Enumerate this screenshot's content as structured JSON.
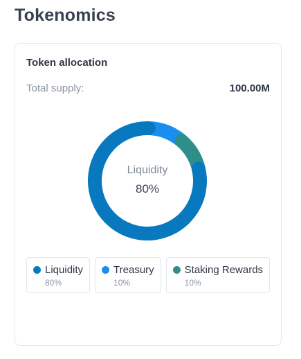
{
  "page": {
    "title": "Tokenomics"
  },
  "card": {
    "title": "Token allocation",
    "supply_label": "Total supply:",
    "supply_value": "100.00M"
  },
  "donut": {
    "center_label": "Liquidity",
    "center_value": "80%"
  },
  "chart_data": {
    "type": "pie",
    "categories": [
      "Liquidity",
      "Treasury",
      "Staking Rewards"
    ],
    "values": [
      80,
      10,
      10
    ],
    "colors": [
      "#0879bf",
      "#1a8ef0",
      "#2e8f8a"
    ]
  },
  "legend": [
    {
      "name": "Liquidity",
      "pct": "80%",
      "color": "#0879bf"
    },
    {
      "name": "Treasury",
      "pct": "10%",
      "color": "#1a8ef0"
    },
    {
      "name": "Staking Rewards",
      "pct": "10%",
      "color": "#2e8f8a"
    }
  ]
}
